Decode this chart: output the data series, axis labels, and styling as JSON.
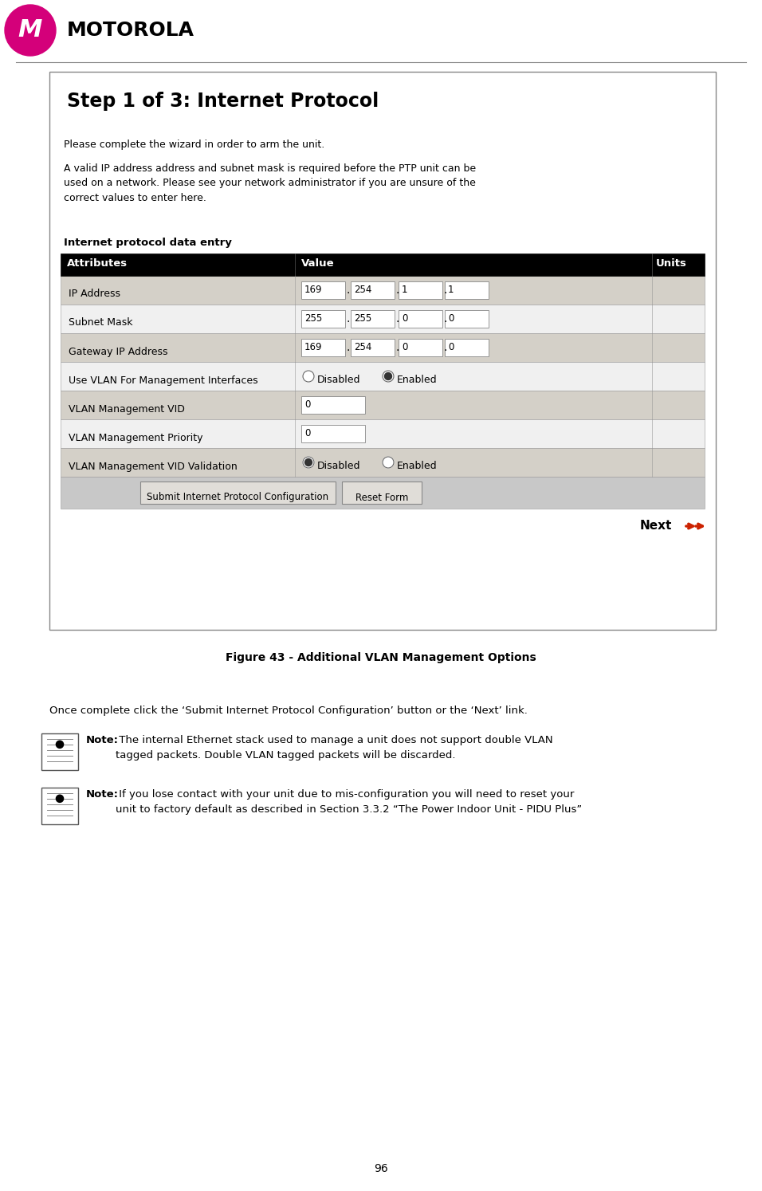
{
  "bg_color": "#ffffff",
  "page_width": 9.56,
  "page_height": 14.94,
  "dpi": 100,
  "motorola_text": "MOTOROLA",
  "logo_color": "#d4007a",
  "box_title": "Step 1 of 3: Internet Protocol",
  "intro_line1": "Please complete the wizard in order to arm the unit.",
  "intro_para": "A valid IP address address and subnet mask is required before the PTP unit can be\nused on a network. Please see your network administrator if you are unsure of the\ncorrect values to enter here.",
  "table_heading": "Internet protocol data entry",
  "col_headers": [
    "Attributes",
    "Value",
    "Units"
  ],
  "col_header_bg": "#000000",
  "col_header_fg": "#ffffff",
  "row_bg_light": "#d4d0c8",
  "row_bg_white": "#f0f0f0",
  "rows": [
    {
      "label": "IP Address",
      "type": "ip4",
      "values": [
        "169",
        "254",
        "1",
        "1"
      ]
    },
    {
      "label": "Subnet Mask",
      "type": "ip4",
      "values": [
        "255",
        "255",
        "0",
        "0"
      ]
    },
    {
      "label": "Gateway IP Address",
      "type": "ip4",
      "values": [
        "169",
        "254",
        "0",
        "0"
      ]
    },
    {
      "label": "Use VLAN For Management Interfaces",
      "type": "radio",
      "options": [
        "Disabled",
        "Enabled"
      ],
      "selected": 1
    },
    {
      "label": "VLAN Management VID",
      "type": "text",
      "value": "0"
    },
    {
      "label": "VLAN Management Priority",
      "type": "text",
      "value": "0"
    },
    {
      "label": "VLAN Management VID Validation",
      "type": "radio",
      "options": [
        "Disabled",
        "Enabled"
      ],
      "selected": 0
    }
  ],
  "submit_btn": "Submit Internet Protocol Configuration",
  "reset_btn": "Reset Form",
  "next_text": "Next",
  "next_arrow_color": "#cc2200",
  "figure_caption": "Figure 43 - Additional VLAN Management Options",
  "once_complete_text": "Once complete click the ‘Submit Internet Protocol Configuration’ button or the ‘Next’ link.",
  "note1_bold": "Note:",
  "note1_text": " The internal Ethernet stack used to manage a unit does not support double VLAN\ntagged packets. Double VLAN tagged packets will be discarded.",
  "note2_bold": "Note:",
  "note2_text": " If you lose contact with your unit due to mis-configuration you will need to reset your\nunit to factory default as described in Section 3.3.2 “The Power Indoor Unit - PIDU Plus”",
  "page_number": "96"
}
